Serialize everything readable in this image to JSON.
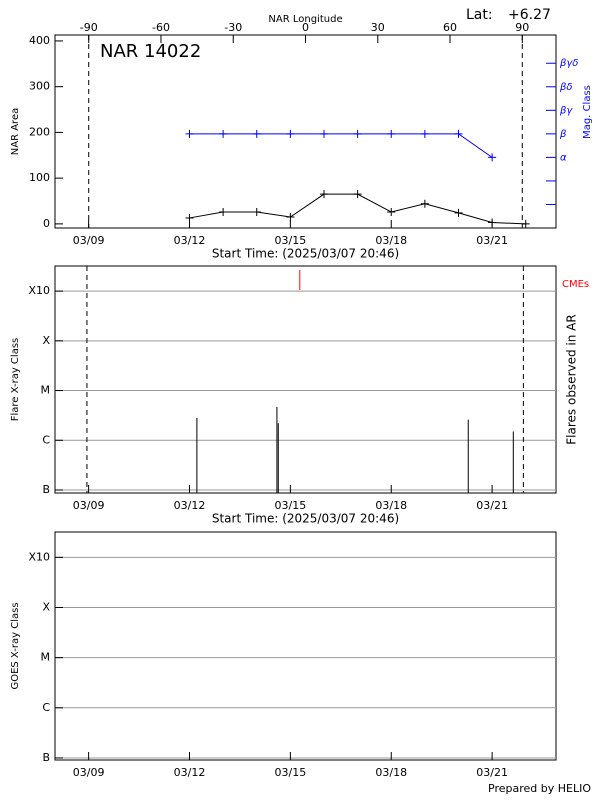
{
  "chart_data": [
    {
      "type": "line",
      "title": "NAR 14022",
      "lat_label": "Lat:",
      "lat": "+6.27",
      "xlabel": "Start Time: (2025/03/07 20:46)",
      "ylabel": "NAR Area",
      "y2label": "Mag. Class",
      "x2label": "NAR Longitude",
      "xlim": [
        8.0,
        22.9
      ],
      "xticks": [
        {
          "value": 9,
          "label": "03/09"
        },
        {
          "value": 12,
          "label": "03/12"
        },
        {
          "value": 15,
          "label": "03/15"
        },
        {
          "value": 18,
          "label": "03/18"
        },
        {
          "value": 21,
          "label": "03/21"
        }
      ],
      "x2lim": [
        -104,
        104
      ],
      "x2ticks": [
        -90,
        -60,
        -30,
        0,
        30,
        60,
        90
      ],
      "limb_longitudes": [
        -90,
        90
      ],
      "ylim": [
        -9,
        413
      ],
      "yticks": [
        0,
        100,
        200,
        300,
        400
      ],
      "y2lim": [
        -2,
        6.2
      ],
      "y2ticks": [
        {
          "value": 1,
          "label": "α"
        },
        {
          "value": 2,
          "label": "β"
        },
        {
          "value": 3,
          "label": "βγ"
        },
        {
          "value": 4,
          "label": "βδ"
        },
        {
          "value": 5,
          "label": "βγδ"
        }
      ],
      "y2ticks_unlabeled": [
        -1,
        0
      ],
      "series": [
        {
          "color": "#000000",
          "x": [
            12,
            13,
            14,
            15,
            16,
            17,
            18,
            19,
            20,
            21,
            22
          ],
          "values": [
            13,
            26,
            26,
            15,
            65,
            65,
            26,
            44,
            24,
            3,
            0
          ]
        },
        {
          "color": "#0000ff",
          "axis": "y2",
          "x": [
            12,
            13,
            14,
            15,
            16,
            17,
            18,
            19,
            20,
            21
          ],
          "values": [
            2,
            2,
            2,
            2,
            2,
            2,
            2,
            2,
            2,
            1
          ]
        }
      ]
    },
    {
      "type": "stem",
      "xlabel": "Start Time: (2025/03/07 20:46)",
      "ylabel": "Flare X-ray Class",
      "y2label": "Flares observed in AR",
      "xlim": [
        8.0,
        22.9
      ],
      "xticks": [
        {
          "value": 9,
          "label": "03/09"
        },
        {
          "value": 12,
          "label": "03/12"
        },
        {
          "value": 15,
          "label": "03/15"
        },
        {
          "value": 18,
          "label": "03/18"
        },
        {
          "value": 21,
          "label": "03/21"
        }
      ],
      "limb_lines": [
        8.95,
        21.93
      ],
      "log_y": true,
      "grid": true,
      "ylim": [
        8.7e-08,
        0.0032
      ],
      "yticks": [
        {
          "value": 1e-07,
          "label": "B"
        },
        {
          "value": 1e-06,
          "label": "C"
        },
        {
          "value": 1e-05,
          "label": "M"
        },
        {
          "value": 0.0001,
          "label": "X"
        },
        {
          "value": 0.001,
          "label": "X10"
        }
      ],
      "series": [
        {
          "color": "#000000",
          "x": [
            12.22,
            14.6,
            14.64,
            20.29,
            21.63
          ],
          "values": [
            2.8e-06,
            4.7e-06,
            2.2e-06,
            2.6e-06,
            1.5e-06
          ]
        }
      ],
      "cmes": {
        "name": "CMEs",
        "color": "#ff0000",
        "x": [
          15.28
        ]
      }
    },
    {
      "type": "line",
      "ylabel": "GOES X-ray Class",
      "xlim": [
        8.0,
        22.9
      ],
      "xticks": [
        {
          "value": 9,
          "label": "03/09"
        },
        {
          "value": 12,
          "label": "03/12"
        },
        {
          "value": 15,
          "label": "03/15"
        },
        {
          "value": 18,
          "label": "03/18"
        },
        {
          "value": 21,
          "label": "03/21"
        }
      ],
      "log_y": true,
      "grid": true,
      "ylim": [
        9.1e-08,
        0.0032
      ],
      "yticks": [
        {
          "value": 1e-07,
          "label": "B"
        },
        {
          "value": 1e-06,
          "label": "C"
        },
        {
          "value": 1e-05,
          "label": "M"
        },
        {
          "value": 0.0001,
          "label": "X"
        },
        {
          "value": 0.001,
          "label": "X10"
        }
      ],
      "series": []
    }
  ],
  "footer": "Prepared by HELIO"
}
